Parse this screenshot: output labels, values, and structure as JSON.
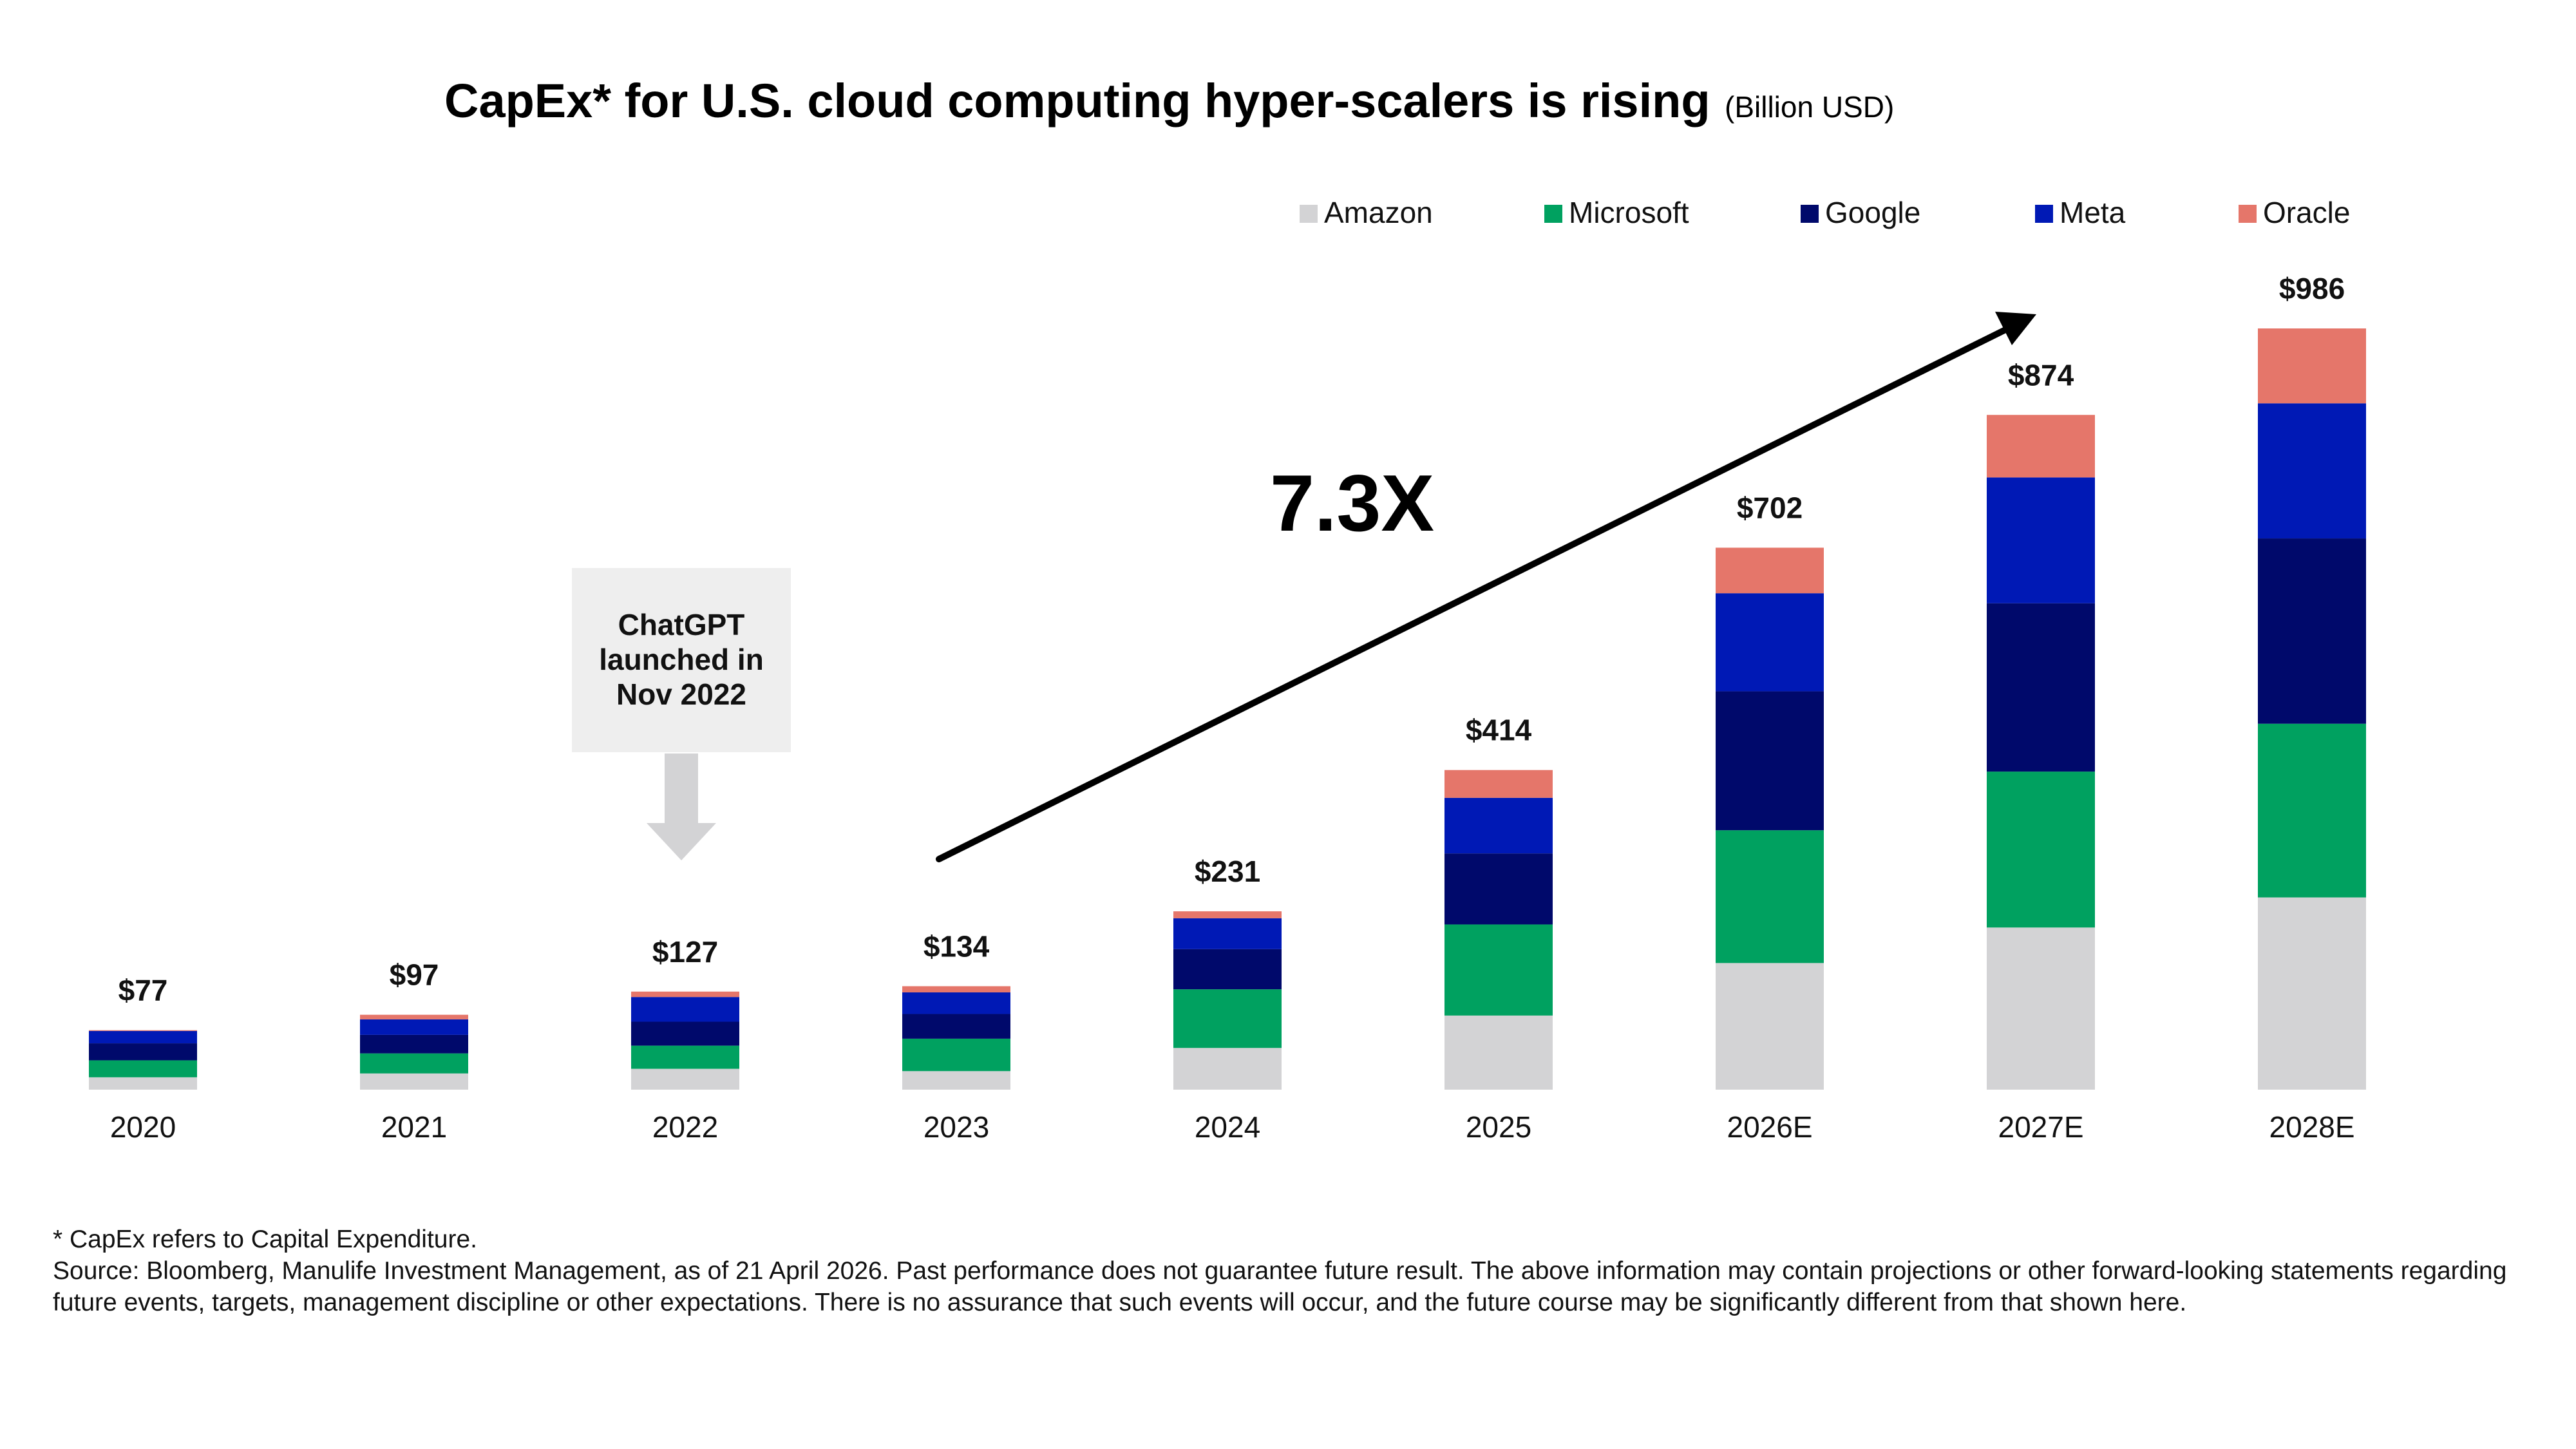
{
  "title": "CapEx* for U.S. cloud computing hyper-scalers is rising",
  "title_unit": "(Billion USD)",
  "multiplier_label": "7.3X",
  "callout": {
    "lines": [
      "ChatGPT",
      "launched in",
      "Nov 2022"
    ]
  },
  "footnotes": {
    "capex_note": "* CapEx refers to Capital Expenditure.",
    "source": "Source: Bloomberg, Manulife Investment Management, as of 21 April 2026. Past performance does not guarantee future result. The above information may contain projections or other forward-looking statements regarding future events, targets, management discipline or other expectations. There is no assurance that such events will occur, and the future course may be significantly different from that shown here."
  },
  "chart_data": {
    "type": "bar",
    "stacked": true,
    "categories": [
      "2020",
      "2021",
      "2022",
      "2023",
      "2024",
      "2025",
      "2026E",
      "2027E",
      "2028E"
    ],
    "totals": [
      77,
      97,
      127,
      134,
      231,
      414,
      702,
      874,
      986
    ],
    "total_labels": [
      "$77",
      "$97",
      "$127",
      "$134",
      "$231",
      "$414",
      "$702",
      "$874",
      "$986"
    ],
    "series": [
      {
        "name": "Amazon",
        "color": "#d3d3d5",
        "values": [
          16,
          21,
          27,
          24,
          54,
          96,
          164,
          210,
          249
        ]
      },
      {
        "name": "Microsoft",
        "color": "#00a160",
        "values": [
          22,
          26,
          30,
          42,
          76,
          118,
          172,
          202,
          225
        ]
      },
      {
        "name": "Google",
        "color": "#00096b",
        "values": [
          22,
          24,
          31,
          32,
          52,
          92,
          180,
          218,
          240
        ]
      },
      {
        "name": "Meta",
        "color": "#0019b5",
        "values": [
          16,
          20,
          32,
          28,
          40,
          72,
          127,
          163,
          175
        ]
      },
      {
        "name": "Oracle",
        "color": "#e5766a",
        "values": [
          1,
          6,
          7,
          8,
          9,
          36,
          59,
          81,
          97
        ]
      }
    ],
    "legend_position": "top-right",
    "grid": false
  }
}
